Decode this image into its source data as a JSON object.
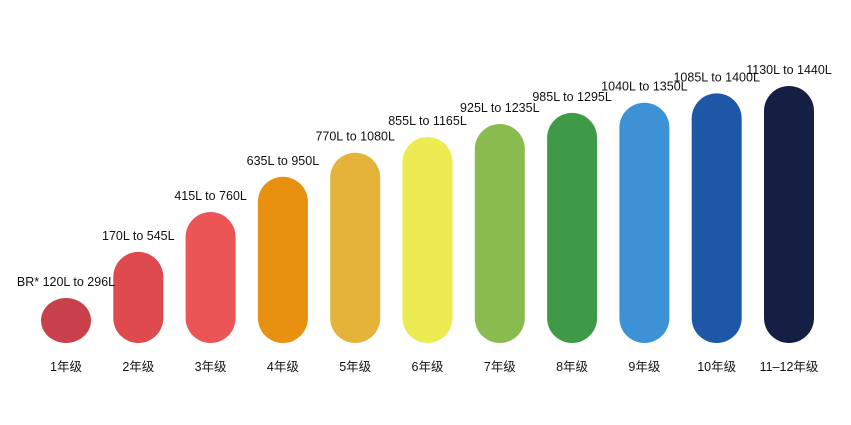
{
  "chart_data": {
    "type": "bar",
    "title": "",
    "xlabel": "",
    "ylabel": "",
    "categories": [
      "1年级",
      "2年级",
      "3年级",
      "4年级",
      "5年级",
      "6年级",
      "7年级",
      "8年级",
      "9年级",
      "10年级",
      "11–12年级"
    ],
    "labels": [
      "BR* 120L to 296L",
      "170L to 545L",
      "415L to 760L",
      "635L to 950L",
      "770L to 1080L",
      "855L to 1165L",
      "925L to 1235L",
      "985L to 1295L",
      "1040L to 1350L",
      "1085L to 1400L",
      "1130L to 1440L"
    ],
    "low": [
      120,
      170,
      415,
      635,
      770,
      855,
      925,
      985,
      1040,
      1085,
      1130
    ],
    "high": [
      296,
      545,
      760,
      950,
      1080,
      1165,
      1235,
      1295,
      1350,
      1400,
      1440
    ],
    "colors": [
      "#C8414A",
      "#DE4A4E",
      "#EC5556",
      "#E8900F",
      "#E5B23A",
      "#ECEB52",
      "#8ABB4F",
      "#3F9A48",
      "#3D92D6",
      "#1E57A6",
      "#151E43"
    ],
    "grid": false,
    "legend": "none"
  }
}
